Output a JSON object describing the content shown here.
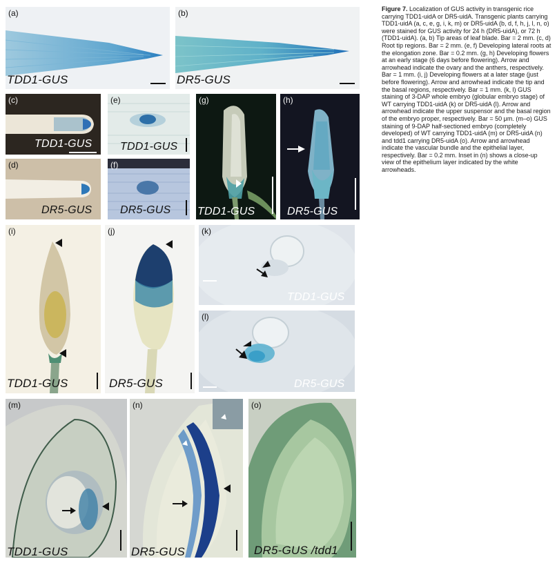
{
  "panels": {
    "a": {
      "letter": "(a)",
      "label": "TDD1-GUS"
    },
    "b": {
      "letter": "(b)",
      "label": "DR5-GUS"
    },
    "c": {
      "letter": "(c)",
      "label": "TDD1-GUS"
    },
    "d": {
      "letter": "(d)",
      "label": "DR5-GUS"
    },
    "e": {
      "letter": "(e)",
      "label": "TDD1-GUS"
    },
    "f": {
      "letter": "(f)",
      "label": "DR5-GUS"
    },
    "g": {
      "letter": "(g)",
      "label": "TDD1-GUS"
    },
    "h": {
      "letter": "(h)",
      "label": "DR5-GUS"
    },
    "i": {
      "letter": "(i)",
      "label": "TDD1-GUS"
    },
    "j": {
      "letter": "(j)",
      "label": "DR5-GUS"
    },
    "k": {
      "letter": "(k)",
      "label": "TDD1-GUS"
    },
    "l": {
      "letter": "(l)",
      "label": "DR5-GUS"
    },
    "m": {
      "letter": "(m)",
      "label": "TDD1-GUS"
    },
    "n": {
      "letter": "(n)",
      "label": "DR5-GUS"
    },
    "o": {
      "letter": "(o)",
      "label": "DR5-GUS /tdd1"
    }
  },
  "caption": {
    "title": "Figure 7.",
    "text": "Localization of GUS activity in transgenic rice carrying TDD1-uidA or DR5-uidA. Transgenic plants carrying TDD1-uidA (a, c, e, g, i, k, m) or DR5-uidA (b, d, f, h, j, l, n, o) were stained for GUS activity for 24 h (DR5-uidA), or 72 h (TDD1-uidA). (a, b) Tip areas of leaf blade. Bar = 2 mm. (c, d) Root tip regions. Bar = 2 mm. (e, f) Developing lateral roots at the elongation zone. Bar = 0.2 mm. (g, h) Developing flowers at an early stage (6 days before flowering). Arrow and arrowhead indicate the ovary and the anthers, respectively. Bar = 1 mm. (i, j) Developing flowers at a later stage (just before flowering). Arrow and arrowhead indicate the tip and the basal regions, respectively. Bar = 1 mm. (k, l) GUS staining of 3-DAP whole embryo (globular embryo stage) of WT carrying TDD1-uidA (k) or DR5-uidA (l). Arrow and arrowhead indicate the upper suspensor and the basal region of the embryo proper, respectively. Bar = 50 μm. (m–o) GUS staining of 9-DAP half-sectioned embryo (completely developed) of WT carrying TDD1-uidA (m) or DR5-uidA (n) and tdd1 carrying DR5-uidA (o). Arrow and arrowhead indicate the vascular bundle and the epithelial layer, respectively. Bar = 0.2 mm. Inset in (n) shows a close-up view of the epithelium layer indicated by the white arrowheads."
  }
}
